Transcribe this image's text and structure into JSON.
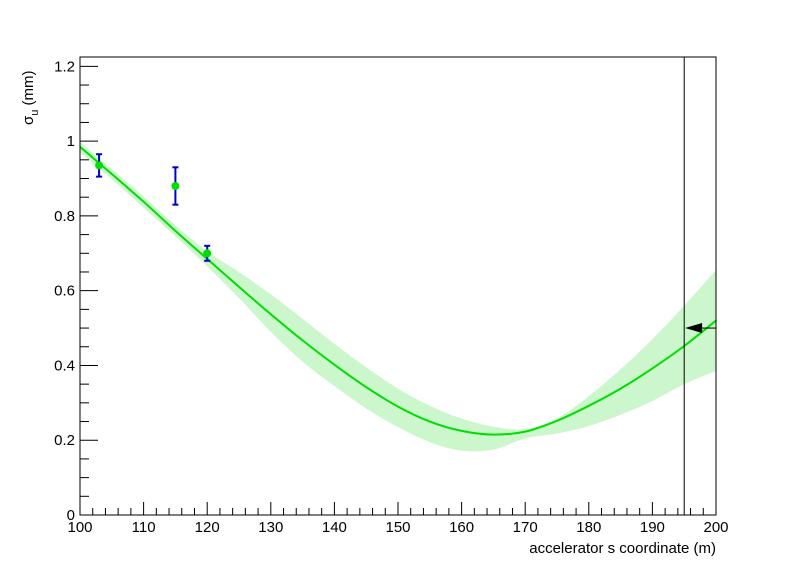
{
  "chart_data": {
    "type": "line",
    "xlabel": "accelerator s coordinate (m)",
    "ylabel_main": "σ",
    "ylabel_sub": "u",
    "ylabel_unit": " (mm)",
    "xlim": [
      100,
      200
    ],
    "ylim": [
      0,
      1.225
    ],
    "x_ticks": [
      100,
      110,
      120,
      130,
      140,
      150,
      160,
      170,
      180,
      190,
      200
    ],
    "x_tick_labels": [
      "100",
      "110",
      "120",
      "130",
      "140",
      "150",
      "160",
      "170",
      "180",
      "190",
      "200"
    ],
    "y_ticks": [
      0,
      0.2,
      0.4,
      0.6,
      0.8,
      1,
      1.2
    ],
    "y_tick_labels": [
      "0",
      "0.2",
      "0.4",
      "0.6",
      "0.8",
      "1",
      "1.2"
    ],
    "grid": false,
    "colors": {
      "fit": "#00dd00",
      "band": "#ccf7cc",
      "points": "#00dd00",
      "error_bars": "#0000cc",
      "marker": "#000000"
    },
    "fit_curve": {
      "x": [
        100,
        105,
        110,
        115,
        120,
        125,
        130,
        135,
        140,
        145,
        150,
        155,
        160,
        165,
        170,
        175,
        180,
        185,
        190,
        195,
        200
      ],
      "y": [
        0.985,
        0.912,
        0.838,
        0.76,
        0.685,
        0.61,
        0.537,
        0.467,
        0.402,
        0.342,
        0.29,
        0.25,
        0.225,
        0.215,
        0.223,
        0.252,
        0.292,
        0.338,
        0.392,
        0.452,
        0.52
      ]
    },
    "band_upper": [
      0.998,
      0.925,
      0.852,
      0.775,
      0.705,
      0.65,
      0.59,
      0.525,
      0.458,
      0.395,
      0.338,
      0.292,
      0.258,
      0.236,
      0.23,
      0.258,
      0.318,
      0.39,
      0.47,
      0.56,
      0.655
    ],
    "band_lower": [
      0.97,
      0.898,
      0.822,
      0.745,
      0.665,
      0.58,
      0.49,
      0.41,
      0.345,
      0.285,
      0.235,
      0.195,
      0.172,
      0.175,
      0.205,
      0.218,
      0.238,
      0.268,
      0.305,
      0.35,
      0.385
    ],
    "points": [
      {
        "x": 103,
        "y": 0.935,
        "err": 0.03
      },
      {
        "x": 115,
        "y": 0.88,
        "err": 0.05
      },
      {
        "x": 120,
        "y": 0.7,
        "err": 0.02
      }
    ],
    "vertical_line_x": 195,
    "marker": {
      "x": 197.5,
      "y": 0.5,
      "line_to_x": 200
    }
  }
}
